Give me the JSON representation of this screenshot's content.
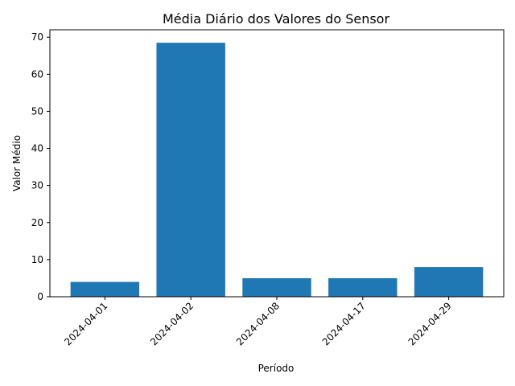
{
  "chart_data": {
    "type": "bar",
    "title": "Média Diário dos Valores do Sensor",
    "xlabel": "Período",
    "ylabel": "Valor Médio",
    "categories": [
      "2024-04-01",
      "2024-04-02",
      "2024-04-08",
      "2024-04-17",
      "2024-04-29"
    ],
    "values": [
      4,
      68.5,
      5,
      5,
      8
    ],
    "ylim": [
      0,
      72
    ],
    "yticks": [
      0,
      10,
      20,
      30,
      40,
      50,
      60,
      70
    ],
    "grid": false,
    "legend": "none",
    "bar_color": "#1f77b4"
  }
}
